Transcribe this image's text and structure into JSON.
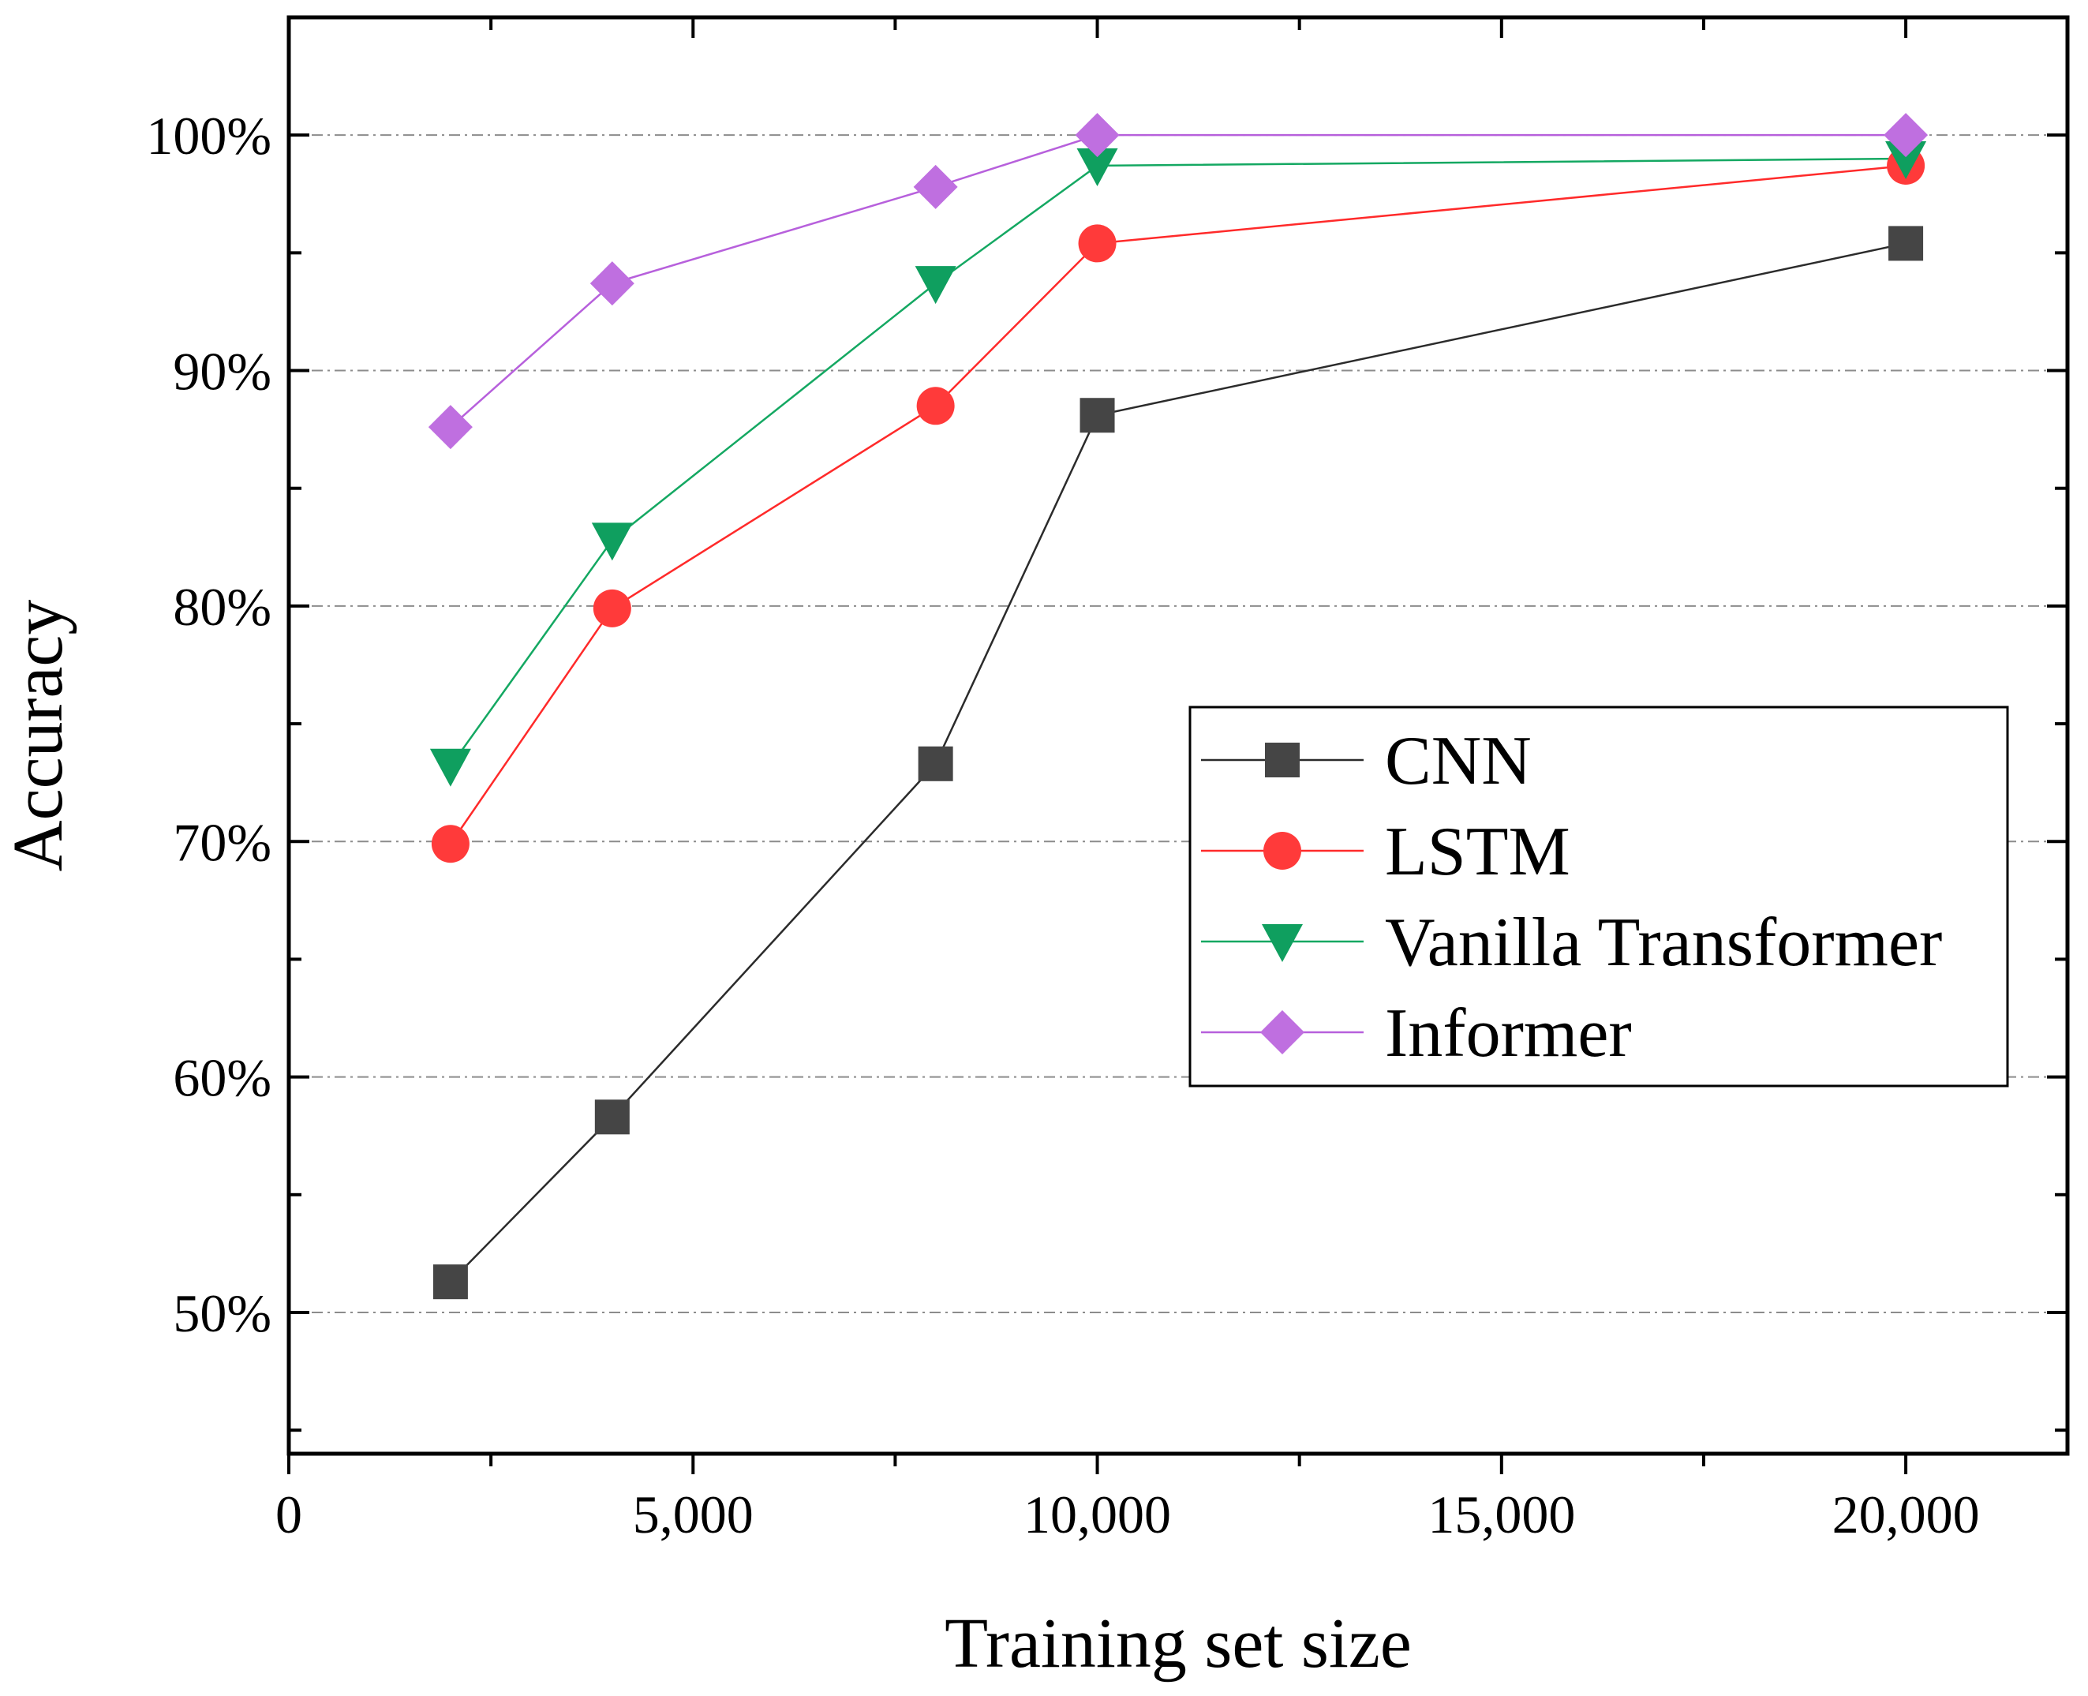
{
  "chart_data": {
    "type": "line",
    "title": "",
    "xlabel": "Training set size",
    "ylabel": "Accuracy",
    "x": [
      2000,
      4000,
      8000,
      10000,
      20000
    ],
    "xlim": [
      0,
      22000
    ],
    "ylim": [
      44,
      105
    ],
    "xticks": [
      0,
      5000,
      10000,
      15000,
      20000
    ],
    "xtick_labels": [
      "0",
      "5,000",
      "10,000",
      "15,000",
      "20,000"
    ],
    "yticks": [
      50,
      60,
      70,
      80,
      90,
      100
    ],
    "ytick_labels": [
      "50%",
      "60%",
      "70%",
      "80%",
      "90%",
      "100%"
    ],
    "grid": true,
    "legend_position": "center-right",
    "series": [
      {
        "name": "CNN",
        "marker": "square",
        "color": "#454545",
        "line_color": "#2b2b2b",
        "values": [
          51.3,
          58.3,
          73.3,
          88.1,
          95.4
        ]
      },
      {
        "name": "LSTM",
        "marker": "circle",
        "color": "#ff3a3a",
        "line_color": "#ff2a2a",
        "values": [
          69.9,
          79.9,
          88.5,
          95.4,
          98.7
        ]
      },
      {
        "name": "Vanilla Transformer",
        "marker": "triangle-down",
        "color": "#0f9f5f",
        "line_color": "#14a862",
        "values": [
          73.2,
          82.8,
          93.7,
          98.7,
          99.0
        ]
      },
      {
        "name": "Informer",
        "marker": "diamond",
        "color": "#bf6fe0",
        "line_color": "#b760dc",
        "values": [
          87.6,
          93.7,
          97.8,
          100.0,
          100.0
        ]
      }
    ]
  }
}
